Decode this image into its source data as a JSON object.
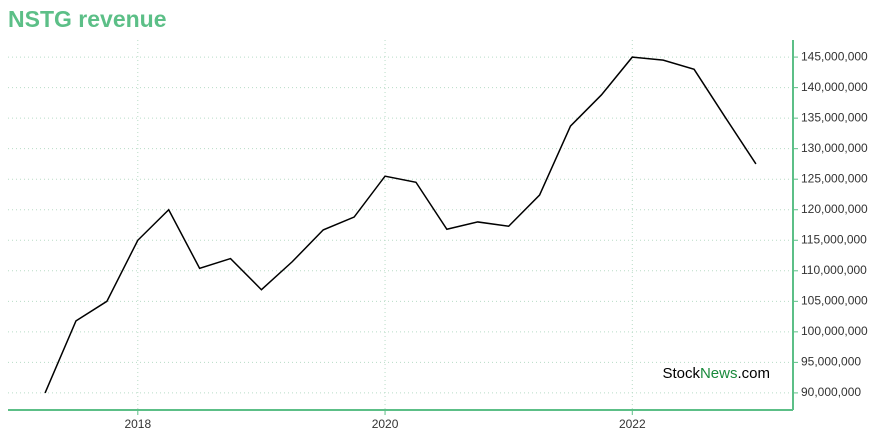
{
  "chart_data": {
    "type": "line",
    "title": "NSTG revenue",
    "x": [
      2017.25,
      2017.5,
      2017.75,
      2018,
      2018.25,
      2018.5,
      2018.75,
      2019,
      2019.25,
      2019.5,
      2019.75,
      2020,
      2020.25,
      2020.5,
      2020.75,
      2021,
      2021.25,
      2021.5,
      2021.75,
      2022,
      2022.25,
      2022.5,
      2022.75,
      2023
    ],
    "series": [
      {
        "color": "#000000",
        "values": [
          90000000,
          101800000,
          105000000,
          115000000,
          120000000,
          110400000,
          112000000,
          106900000,
          111500000,
          116700000,
          118800000,
          125500000,
          124500000,
          116800000,
          118000000,
          117300000,
          122400000,
          133700000,
          138800000,
          145000000,
          144500000,
          143000000,
          135200000,
          127500000
        ]
      }
    ],
    "xlim": [
      2016.95,
      2023.3
    ],
    "xticks": [
      2018,
      2020,
      2022
    ],
    "ylim": [
      87200000,
      147800000
    ],
    "yticks": [
      {
        "value": 90000000,
        "label": "90,000,000"
      },
      {
        "value": 95000000,
        "label": "95,000,000"
      },
      {
        "value": 100000000,
        "label": "100,000,000"
      },
      {
        "value": 105000000,
        "label": "105,000,000"
      },
      {
        "value": 110000000,
        "label": "110,000,000"
      },
      {
        "value": 115000000,
        "label": "115,000,000"
      },
      {
        "value": 120000000,
        "label": "120,000,000"
      },
      {
        "value": 125000000,
        "label": "125,000,000"
      },
      {
        "value": 130000000,
        "label": "130,000,000"
      },
      {
        "value": 135000000,
        "label": "135,000,000"
      },
      {
        "value": 140000000,
        "label": "140,000,000"
      },
      {
        "value": 145000000,
        "label": "145,000,000"
      }
    ],
    "grid": true,
    "watermark": {
      "part1": "Stock",
      "part2": "News",
      "part3": ".com"
    }
  }
}
